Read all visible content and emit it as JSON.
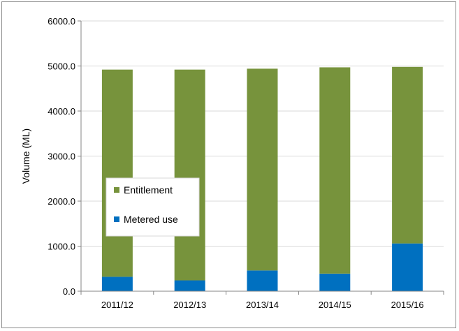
{
  "chart_data": {
    "type": "bar",
    "stacked": true,
    "categories": [
      "2011/12",
      "2012/13",
      "2013/14",
      "2014/15",
      "2015/16"
    ],
    "series": [
      {
        "name": "Metered use",
        "values": [
          320,
          240,
          460,
          390,
          1060
        ],
        "color": "#0070c0"
      },
      {
        "name": "Entitlement",
        "values": [
          4600,
          4680,
          4480,
          4580,
          3920
        ],
        "color": "#77933c"
      }
    ],
    "totals": [
      4920,
      4920,
      4940,
      4970,
      4980
    ],
    "title": "",
    "xlabel": "",
    "ylabel": "Volume (ML)",
    "ylim": [
      0,
      6000
    ],
    "yticks": [
      "0.0",
      "1000.0",
      "2000.0",
      "3000.0",
      "4000.0",
      "5000.0",
      "6000.0"
    ],
    "ytick_values": [
      0,
      1000,
      2000,
      3000,
      4000,
      5000,
      6000
    ],
    "grid": true,
    "legend_position": "center-left",
    "legend_order": [
      "Entitlement",
      "Metered use"
    ]
  }
}
